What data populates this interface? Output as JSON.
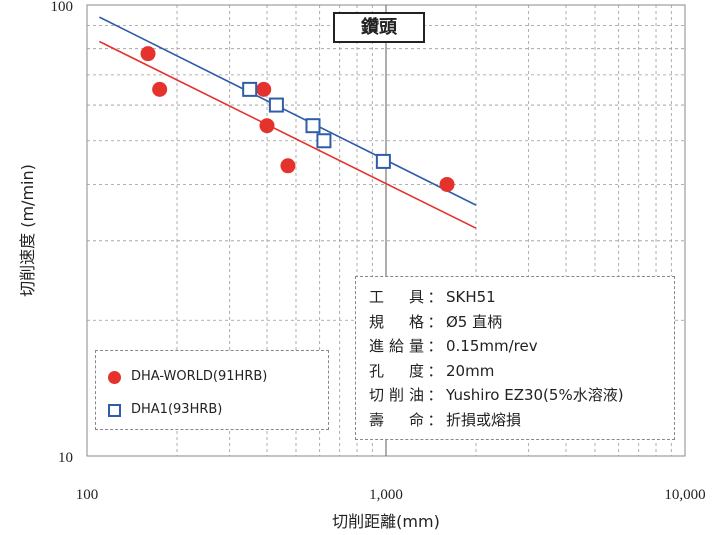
{
  "chart_data": {
    "type": "scatter",
    "badge": "鑽頭",
    "xlabel": "切削距離(mm)",
    "ylabel": "切削速度 (m/min)",
    "x_scale": "log",
    "y_scale": "log",
    "xlim": [
      100,
      10000
    ],
    "ylim": [
      10,
      100
    ],
    "x_ticks": [
      100,
      1000,
      10000
    ],
    "x_tick_labels": [
      "100",
      "1,000",
      "10,000"
    ],
    "y_ticks": [
      10,
      100
    ],
    "y_tick_labels": [
      "10",
      "100"
    ],
    "grid": true,
    "series": [
      {
        "name": "DHA-WORLD(91HRB)",
        "marker": "filled-circle",
        "color": "#e5322d",
        "points": [
          [
            160,
            78
          ],
          [
            175,
            65
          ],
          [
            390,
            65
          ],
          [
            400,
            54
          ],
          [
            470,
            44
          ],
          [
            1600,
            40
          ]
        ],
        "trend": [
          [
            110,
            83
          ],
          [
            2000,
            32
          ]
        ]
      },
      {
        "name": "DHA1(93HRB)",
        "marker": "open-square",
        "color": "#2f5da8",
        "points": [
          [
            350,
            65
          ],
          [
            430,
            60
          ],
          [
            570,
            54
          ],
          [
            620,
            50
          ],
          [
            980,
            45
          ]
        ],
        "trend": [
          [
            110,
            94
          ],
          [
            2000,
            36
          ]
        ]
      }
    ],
    "legend_position": "bottom-left",
    "annotation": {
      "rows": [
        {
          "key": "工　具",
          "value": "SKH51"
        },
        {
          "key": "規　格",
          "value": "Ø5 直柄"
        },
        {
          "key": "進給量",
          "value": "0.15mm/rev"
        },
        {
          "key": "孔　度",
          "value": "20mm"
        },
        {
          "key": "切削油",
          "value": "Yushiro EZ30(5%水溶液)"
        },
        {
          "key": "壽　命",
          "value": "折損或熔損"
        }
      ],
      "separator": "："
    }
  }
}
